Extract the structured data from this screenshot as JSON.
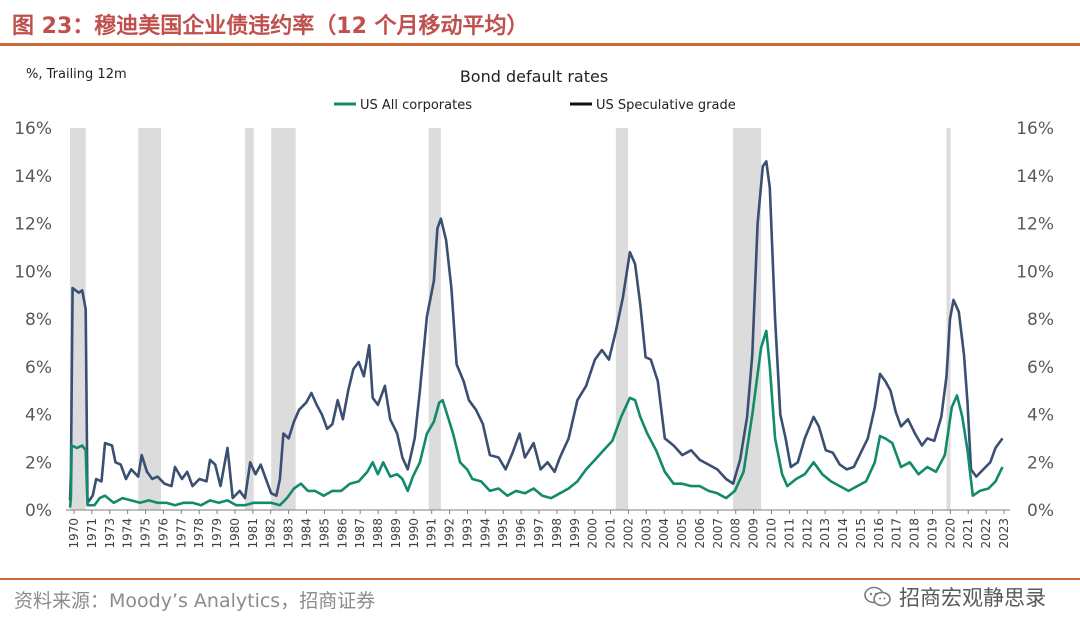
{
  "figure": {
    "title": "图 23：穆迪美国企业债违约率（12 个月移动平均）",
    "source": "资料来源：Moody’s Analytics，招商证券",
    "watermark": "招商宏观静思录"
  },
  "colors": {
    "all_corporates": "#138a6b",
    "speculative": "#3a4f72",
    "recession": "#dcdcdc",
    "axis_text": "#595959",
    "accent": "#c0504d"
  },
  "chart_data": {
    "type": "line",
    "title": "Bond default rates",
    "unit_label": "%, Trailing 12m",
    "xlabel": "",
    "ylabel": "",
    "xlim": [
      1970,
      2023.5
    ],
    "ylim": [
      0,
      16
    ],
    "y_ticks": [
      "0%",
      "2%",
      "4%",
      "6%",
      "8%",
      "10%",
      "12%",
      "14%",
      "16%"
    ],
    "x_ticks": [
      "1970",
      "1971",
      "1973",
      "1974",
      "1975",
      "1976",
      "1977",
      "1978",
      "1979",
      "1980",
      "1981",
      "1982",
      "1983",
      "1984",
      "1985",
      "1986",
      "1987",
      "1988",
      "1989",
      "1990",
      "1991",
      "1992",
      "1993",
      "1994",
      "1995",
      "1996",
      "1997",
      "1998",
      "1999",
      "2000",
      "2001",
      "2002",
      "2003",
      "2004",
      "2005",
      "2006",
      "2007",
      "2008",
      "2009",
      "2010",
      "2011",
      "2012",
      "2013",
      "2014",
      "2015",
      "2016",
      "2017",
      "2018",
      "2019",
      "2020",
      "2021",
      "2022",
      "2023"
    ],
    "legend_position": "top-center",
    "grid": false,
    "recessions": [
      [
        1970.0,
        1970.9
      ],
      [
        1973.9,
        1975.2
      ],
      [
        1980.0,
        1980.5
      ],
      [
        1981.5,
        1982.9
      ],
      [
        1990.5,
        1991.2
      ],
      [
        2001.2,
        2001.9
      ],
      [
        2007.9,
        2009.5
      ],
      [
        2020.1,
        2020.3
      ]
    ],
    "series": [
      {
        "name": "US All corporates",
        "points": [
          [
            1970.0,
            0.1
          ],
          [
            1970.05,
            0.5
          ],
          [
            1970.1,
            2.7
          ],
          [
            1970.4,
            2.6
          ],
          [
            1970.7,
            2.7
          ],
          [
            1970.9,
            2.5
          ],
          [
            1971.0,
            0.2
          ],
          [
            1971.4,
            0.2
          ],
          [
            1971.7,
            0.5
          ],
          [
            1972.0,
            0.6
          ],
          [
            1972.5,
            0.3
          ],
          [
            1973.0,
            0.5
          ],
          [
            1973.5,
            0.4
          ],
          [
            1974.0,
            0.3
          ],
          [
            1974.5,
            0.4
          ],
          [
            1975.0,
            0.3
          ],
          [
            1975.5,
            0.3
          ],
          [
            1976.0,
            0.2
          ],
          [
            1976.5,
            0.3
          ],
          [
            1977.0,
            0.3
          ],
          [
            1977.5,
            0.2
          ],
          [
            1978.0,
            0.4
          ],
          [
            1978.5,
            0.3
          ],
          [
            1979.0,
            0.4
          ],
          [
            1979.5,
            0.2
          ],
          [
            1980.0,
            0.2
          ],
          [
            1980.5,
            0.3
          ],
          [
            1981.0,
            0.3
          ],
          [
            1981.5,
            0.3
          ],
          [
            1982.0,
            0.2
          ],
          [
            1982.4,
            0.5
          ],
          [
            1982.8,
            0.9
          ],
          [
            1983.2,
            1.1
          ],
          [
            1983.6,
            0.8
          ],
          [
            1984.0,
            0.8
          ],
          [
            1984.5,
            0.6
          ],
          [
            1985.0,
            0.8
          ],
          [
            1985.5,
            0.8
          ],
          [
            1986.0,
            1.1
          ],
          [
            1986.5,
            1.2
          ],
          [
            1987.0,
            1.6
          ],
          [
            1987.3,
            2.0
          ],
          [
            1987.6,
            1.5
          ],
          [
            1987.9,
            2.0
          ],
          [
            1988.3,
            1.4
          ],
          [
            1988.7,
            1.5
          ],
          [
            1989.0,
            1.3
          ],
          [
            1989.3,
            0.8
          ],
          [
            1989.6,
            1.4
          ],
          [
            1990.0,
            2.0
          ],
          [
            1990.4,
            3.2
          ],
          [
            1990.8,
            3.7
          ],
          [
            1991.1,
            4.5
          ],
          [
            1991.3,
            4.6
          ],
          [
            1991.6,
            3.9
          ],
          [
            1991.9,
            3.2
          ],
          [
            1992.3,
            2.0
          ],
          [
            1992.7,
            1.7
          ],
          [
            1993.0,
            1.3
          ],
          [
            1993.5,
            1.2
          ],
          [
            1994.0,
            0.8
          ],
          [
            1994.5,
            0.9
          ],
          [
            1995.0,
            0.6
          ],
          [
            1995.5,
            0.8
          ],
          [
            1996.0,
            0.7
          ],
          [
            1996.5,
            0.9
          ],
          [
            1997.0,
            0.6
          ],
          [
            1997.5,
            0.5
          ],
          [
            1998.0,
            0.7
          ],
          [
            1998.5,
            0.9
          ],
          [
            1999.0,
            1.2
          ],
          [
            1999.5,
            1.7
          ],
          [
            2000.0,
            2.1
          ],
          [
            2000.5,
            2.5
          ],
          [
            2001.0,
            2.9
          ],
          [
            2001.5,
            3.9
          ],
          [
            2002.0,
            4.7
          ],
          [
            2002.3,
            4.6
          ],
          [
            2002.6,
            3.9
          ],
          [
            2003.0,
            3.2
          ],
          [
            2003.5,
            2.5
          ],
          [
            2004.0,
            1.6
          ],
          [
            2004.5,
            1.1
          ],
          [
            2005.0,
            1.1
          ],
          [
            2005.5,
            1.0
          ],
          [
            2006.0,
            1.0
          ],
          [
            2006.5,
            0.8
          ],
          [
            2007.0,
            0.7
          ],
          [
            2007.5,
            0.5
          ],
          [
            2008.0,
            0.8
          ],
          [
            2008.5,
            1.6
          ],
          [
            2009.0,
            4.0
          ],
          [
            2009.5,
            6.8
          ],
          [
            2009.8,
            7.5
          ],
          [
            2010.0,
            6.0
          ],
          [
            2010.3,
            3.0
          ],
          [
            2010.7,
            1.5
          ],
          [
            2011.0,
            1.0
          ],
          [
            2011.5,
            1.3
          ],
          [
            2012.0,
            1.5
          ],
          [
            2012.5,
            2.0
          ],
          [
            2013.0,
            1.5
          ],
          [
            2013.5,
            1.2
          ],
          [
            2014.0,
            1.0
          ],
          [
            2014.5,
            0.8
          ],
          [
            2015.0,
            1.0
          ],
          [
            2015.5,
            1.2
          ],
          [
            2016.0,
            2.0
          ],
          [
            2016.3,
            3.1
          ],
          [
            2016.6,
            3.0
          ],
          [
            2017.0,
            2.8
          ],
          [
            2017.5,
            1.8
          ],
          [
            2018.0,
            2.0
          ],
          [
            2018.5,
            1.5
          ],
          [
            2019.0,
            1.8
          ],
          [
            2019.5,
            1.6
          ],
          [
            2020.0,
            2.3
          ],
          [
            2020.4,
            4.3
          ],
          [
            2020.7,
            4.8
          ],
          [
            2021.0,
            3.9
          ],
          [
            2021.3,
            2.5
          ],
          [
            2021.6,
            0.6
          ],
          [
            2022.0,
            0.8
          ],
          [
            2022.5,
            0.9
          ],
          [
            2022.9,
            1.2
          ],
          [
            2023.3,
            1.8
          ]
        ]
      },
      {
        "name": "US Speculative grade",
        "points": [
          [
            1970.0,
            0.4
          ],
          [
            1970.05,
            1.5
          ],
          [
            1970.15,
            9.3
          ],
          [
            1970.5,
            9.1
          ],
          [
            1970.7,
            9.2
          ],
          [
            1970.9,
            8.4
          ],
          [
            1971.0,
            0.3
          ],
          [
            1971.3,
            0.6
          ],
          [
            1971.5,
            1.3
          ],
          [
            1971.8,
            1.2
          ],
          [
            1972.0,
            2.8
          ],
          [
            1972.4,
            2.7
          ],
          [
            1972.6,
            2.0
          ],
          [
            1972.9,
            1.9
          ],
          [
            1973.2,
            1.3
          ],
          [
            1973.5,
            1.7
          ],
          [
            1973.9,
            1.4
          ],
          [
            1974.1,
            2.3
          ],
          [
            1974.4,
            1.6
          ],
          [
            1974.7,
            1.3
          ],
          [
            1975.0,
            1.4
          ],
          [
            1975.4,
            1.1
          ],
          [
            1975.8,
            1.0
          ],
          [
            1976.0,
            1.8
          ],
          [
            1976.4,
            1.3
          ],
          [
            1976.7,
            1.6
          ],
          [
            1977.0,
            1.0
          ],
          [
            1977.4,
            1.3
          ],
          [
            1977.8,
            1.2
          ],
          [
            1978.0,
            2.1
          ],
          [
            1978.3,
            1.9
          ],
          [
            1978.6,
            1.0
          ],
          [
            1979.0,
            2.6
          ],
          [
            1979.3,
            0.5
          ],
          [
            1979.7,
            0.8
          ],
          [
            1980.0,
            0.5
          ],
          [
            1980.3,
            2.0
          ],
          [
            1980.6,
            1.5
          ],
          [
            1980.9,
            1.9
          ],
          [
            1981.2,
            1.3
          ],
          [
            1981.5,
            0.7
          ],
          [
            1981.8,
            0.6
          ],
          [
            1982.0,
            1.3
          ],
          [
            1982.2,
            3.2
          ],
          [
            1982.5,
            3.0
          ],
          [
            1982.8,
            3.7
          ],
          [
            1983.1,
            4.2
          ],
          [
            1983.5,
            4.5
          ],
          [
            1983.8,
            4.9
          ],
          [
            1984.1,
            4.4
          ],
          [
            1984.4,
            4.0
          ],
          [
            1984.7,
            3.4
          ],
          [
            1985.0,
            3.6
          ],
          [
            1985.3,
            4.6
          ],
          [
            1985.6,
            3.8
          ],
          [
            1985.9,
            5.0
          ],
          [
            1986.2,
            5.9
          ],
          [
            1986.5,
            6.2
          ],
          [
            1986.8,
            5.6
          ],
          [
            1987.1,
            6.9
          ],
          [
            1987.3,
            4.7
          ],
          [
            1987.6,
            4.4
          ],
          [
            1988.0,
            5.2
          ],
          [
            1988.3,
            3.8
          ],
          [
            1988.7,
            3.2
          ],
          [
            1989.0,
            2.2
          ],
          [
            1989.3,
            1.7
          ],
          [
            1989.7,
            3.0
          ],
          [
            1990.0,
            5.0
          ],
          [
            1990.4,
            8.1
          ],
          [
            1990.8,
            9.6
          ],
          [
            1991.0,
            11.8
          ],
          [
            1991.2,
            12.2
          ],
          [
            1991.5,
            11.3
          ],
          [
            1991.8,
            9.3
          ],
          [
            1992.1,
            6.1
          ],
          [
            1992.5,
            5.4
          ],
          [
            1992.8,
            4.6
          ],
          [
            1993.2,
            4.2
          ],
          [
            1993.6,
            3.6
          ],
          [
            1994.0,
            2.3
          ],
          [
            1994.5,
            2.2
          ],
          [
            1994.9,
            1.7
          ],
          [
            1995.3,
            2.4
          ],
          [
            1995.7,
            3.2
          ],
          [
            1996.0,
            2.2
          ],
          [
            1996.5,
            2.8
          ],
          [
            1996.9,
            1.7
          ],
          [
            1997.3,
            2.0
          ],
          [
            1997.7,
            1.6
          ],
          [
            1998.0,
            2.2
          ],
          [
            1998.5,
            3.0
          ],
          [
            1999.0,
            4.6
          ],
          [
            1999.5,
            5.2
          ],
          [
            2000.0,
            6.3
          ],
          [
            2000.4,
            6.7
          ],
          [
            2000.8,
            6.3
          ],
          [
            2001.2,
            7.5
          ],
          [
            2001.6,
            8.9
          ],
          [
            2002.0,
            10.8
          ],
          [
            2002.3,
            10.3
          ],
          [
            2002.6,
            8.6
          ],
          [
            2002.9,
            6.4
          ],
          [
            2003.2,
            6.3
          ],
          [
            2003.6,
            5.4
          ],
          [
            2004.0,
            3.0
          ],
          [
            2004.5,
            2.7
          ],
          [
            2005.0,
            2.3
          ],
          [
            2005.5,
            2.5
          ],
          [
            2006.0,
            2.1
          ],
          [
            2006.5,
            1.9
          ],
          [
            2007.0,
            1.7
          ],
          [
            2007.5,
            1.3
          ],
          [
            2007.9,
            1.1
          ],
          [
            2008.3,
            2.1
          ],
          [
            2008.7,
            3.9
          ],
          [
            2009.0,
            6.5
          ],
          [
            2009.3,
            12.0
          ],
          [
            2009.6,
            14.4
          ],
          [
            2009.8,
            14.6
          ],
          [
            2010.0,
            13.5
          ],
          [
            2010.3,
            8.0
          ],
          [
            2010.6,
            4.0
          ],
          [
            2010.9,
            3.0
          ],
          [
            2011.2,
            1.8
          ],
          [
            2011.6,
            2.0
          ],
          [
            2012.0,
            3.0
          ],
          [
            2012.5,
            3.9
          ],
          [
            2012.8,
            3.5
          ],
          [
            2013.2,
            2.5
          ],
          [
            2013.6,
            2.4
          ],
          [
            2014.0,
            1.9
          ],
          [
            2014.4,
            1.7
          ],
          [
            2014.8,
            1.8
          ],
          [
            2015.2,
            2.4
          ],
          [
            2015.6,
            3.0
          ],
          [
            2016.0,
            4.3
          ],
          [
            2016.3,
            5.7
          ],
          [
            2016.6,
            5.4
          ],
          [
            2016.9,
            5.0
          ],
          [
            2017.2,
            4.1
          ],
          [
            2017.5,
            3.5
          ],
          [
            2017.9,
            3.8
          ],
          [
            2018.3,
            3.2
          ],
          [
            2018.7,
            2.7
          ],
          [
            2019.0,
            3.0
          ],
          [
            2019.4,
            2.9
          ],
          [
            2019.8,
            3.9
          ],
          [
            2020.1,
            5.6
          ],
          [
            2020.3,
            8.0
          ],
          [
            2020.5,
            8.8
          ],
          [
            2020.8,
            8.3
          ],
          [
            2021.1,
            6.5
          ],
          [
            2021.3,
            4.5
          ],
          [
            2021.5,
            1.7
          ],
          [
            2021.8,
            1.4
          ],
          [
            2022.2,
            1.7
          ],
          [
            2022.6,
            2.0
          ],
          [
            2022.9,
            2.6
          ],
          [
            2023.3,
            3.0
          ]
        ]
      }
    ]
  }
}
